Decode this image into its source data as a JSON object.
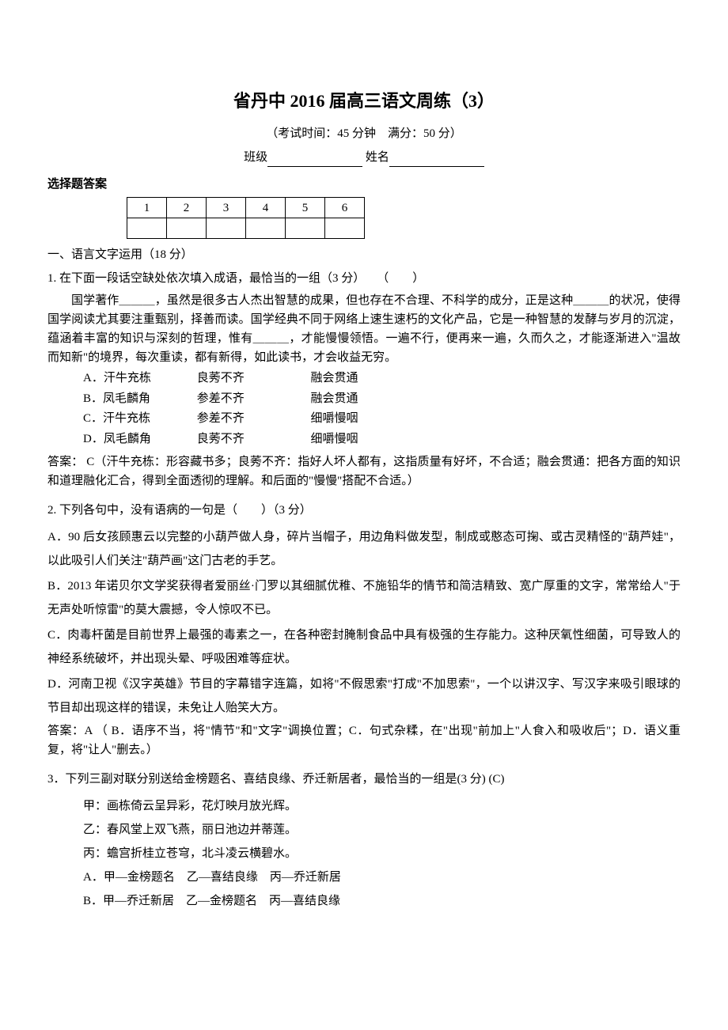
{
  "title": "省丹中 2016 届高三语文周练（3）",
  "exam_info": "（考试时间：45 分钟　满分：50 分）",
  "class_label": "班级",
  "name_label": "姓名",
  "answer_header": "选择题答案",
  "answer_table": {
    "headers": [
      "1",
      "2",
      "3",
      "4",
      "5",
      "6"
    ]
  },
  "section1": "一、语言文字运用（18 分）",
  "q1": {
    "stem": "1. 在下面一段话空缺处依次填入成语，最恰当的一组（3 分）　　（　　）",
    "para": "国学著作＿＿＿，虽然是很多古人杰出智慧的成果，但也存在不合理、不科学的成分，正是这种＿＿＿的状况，使得国学阅读尤其要注重甄别，择善而读。国学经典不同于网络上速生速朽的文化产品，它是一种智慧的发酵与岁月的沉淀，蕴涵着丰富的知识与深刻的哲理，惟有＿＿＿，才能慢慢领悟。一遍不行，便再来一遍，久而久之，才能逐渐进入\"温故而知新\"的境界，每次重读，都有新得，如此读书，才会收益无穷。",
    "opts": {
      "A": [
        "A．汗牛充栋",
        "良莠不齐",
        "融会贯通"
      ],
      "B": [
        "B．凤毛麟角",
        "参差不齐",
        "融会贯通"
      ],
      "C": [
        "C．汗牛充栋",
        "参差不齐",
        "细嚼慢咽"
      ],
      "D": [
        "D．凤毛麟角",
        "良莠不齐",
        "细嚼慢咽"
      ]
    },
    "answer": "答案：  C（汗牛充栋：形容藏书多；良莠不齐：指好人坏人都有，这指质量有好坏，不合适；融会贯通：把各方面的知识和道理融化汇合，得到全面透彻的理解。和后面的\"慢慢\"搭配不合适。）"
  },
  "q2": {
    "stem": "2. 下列各句中，没有语病的一句是（　　）（3 分）",
    "A": "A．90 后女孩顾惠云以完整的小葫芦做人身，碎片当帽子，用边角料做发型，制成或憨态可掬、或古灵精怪的\"葫芦娃\"，以此吸引人们关注\"葫芦画\"这门古老的手艺。",
    "B": "B．2013 年诺贝尔文学奖获得者爱丽丝·门罗以其细腻优稚、不施铅华的情节和简洁精致、宽广厚重的文字，常常给人\"于无声处听惊雷\"的莫大震撼，令人惊叹不已。",
    "C": "C．肉毒杆菌是目前世界上最强的毒素之一，在各种密封腌制食品中具有极强的生存能力。这种厌氧性细菌，可导致人的神经系统破坏，并出现头晕、呼吸困难等症状。",
    "D": "D．河南卫视《汉字英雄》节目的字幕错字连篇，如将\"不假思索\"打成\"不加思索\"，一个以讲汉字、写汉字来吸引眼球的节目却出现这样的错误，未免让人贻笑大方。",
    "answer": "答案：A （ B．语序不当，将\"情节\"和\"文字\"调换位置；C．句式杂糅，在\"出现\"前加上\"人食入和吸收后\"；D．语义重复，将\"让人\"删去。）"
  },
  "q3": {
    "stem": "3．下列三副对联分别送给金榜题名、喜结良缘、乔迁新居者，最恰当的一组是(3 分)  (C)",
    "jia": "甲：画栋倚云呈异彩，花灯映月放光辉。",
    "yi": "乙：春风堂上双飞燕，丽日池边并蒂莲。",
    "bing": "丙：蟾宫折桂立苍穹，北斗凌云横碧水。",
    "A": "A．甲—金榜题名　乙—喜结良缘　丙—乔迁新居",
    "B": "B．甲—乔迁新居　乙—金榜题名　丙—喜结良缘"
  }
}
